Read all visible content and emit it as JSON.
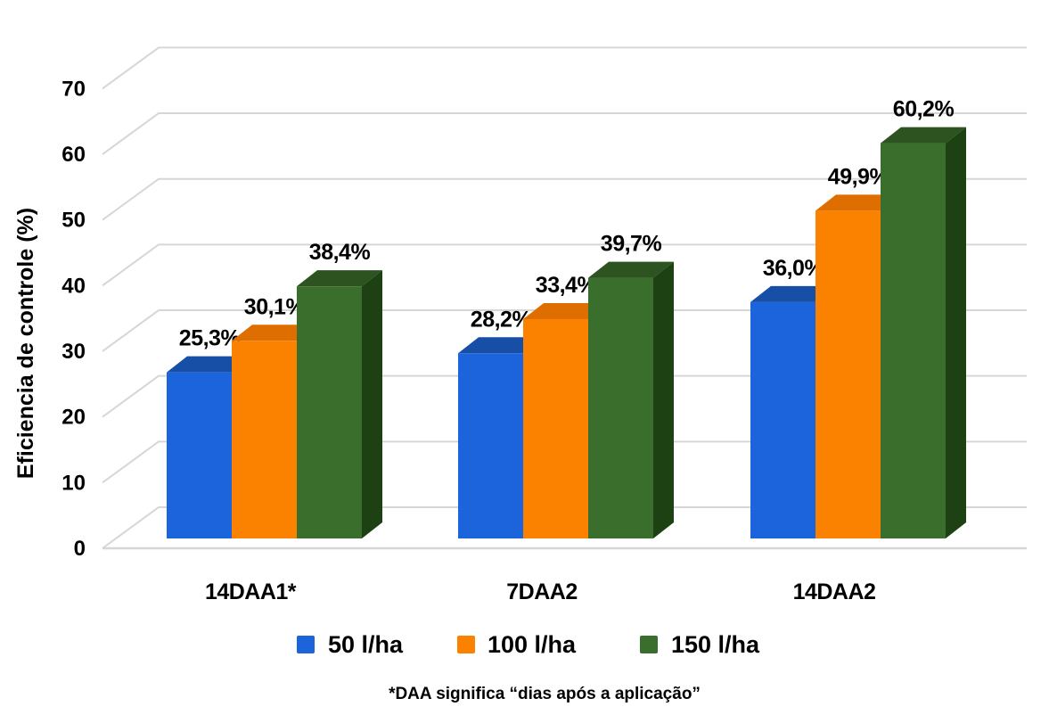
{
  "chart_data": {
    "type": "bar",
    "style": "3d-clustered-column",
    "title": "",
    "ylabel": "Eficiencia de controle (%)",
    "xlabel": "",
    "categories": [
      "14DAA1*",
      "7DAA2",
      "14DAA2"
    ],
    "series": [
      {
        "name": "50 l/ha",
        "color": "#1C64DB",
        "color_top": "#164FA5",
        "color_side": "#123F85",
        "values": [
          25.3,
          28.2,
          36.0
        ],
        "labels": [
          "25,3%",
          "28,2%",
          "36,0%"
        ]
      },
      {
        "name": "100 l/ha",
        "color": "#FB8200",
        "color_top": "#DF6E00",
        "color_side": "#B35800",
        "values": [
          30.1,
          33.4,
          49.9
        ],
        "labels": [
          "30,1%",
          "33,4%",
          "49,9%"
        ]
      },
      {
        "name": "150 l/ha",
        "color": "#3A6E2D",
        "color_top": "#2C5320",
        "color_side": "#1E4113",
        "values": [
          38.4,
          39.7,
          60.2
        ],
        "labels": [
          "38,4%",
          "39,7%",
          "60,2%"
        ]
      }
    ],
    "y_ticks": [
      0,
      10,
      20,
      30,
      40,
      50,
      60,
      70
    ],
    "ylim": [
      0,
      70
    ],
    "grid": true,
    "grid_color": "#D6D6D6",
    "text_color": "#000000",
    "background_color": "#FFFFFF",
    "legend_position": "bottom",
    "footnote": "*DAA significa “dias após a aplicação”"
  }
}
